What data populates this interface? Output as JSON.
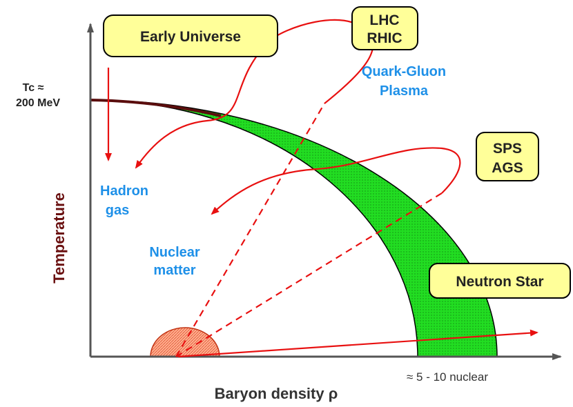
{
  "axes": {
    "y_label": "Temperature",
    "x_label": "Baryon density ρ",
    "tc_label": [
      "Tc ≈",
      "200 MeV"
    ],
    "x_annotation": "≈ 5 - 10 nuclear"
  },
  "boxes": [
    {
      "lines": [
        "Early Universe"
      ]
    },
    {
      "lines": [
        "LHC",
        "RHIC"
      ]
    },
    {
      "lines": [
        "SPS",
        "AGS"
      ]
    },
    {
      "lines": [
        "Neutron Star"
      ]
    }
  ],
  "regions": [
    {
      "lines": [
        "Quark-Gluon",
        "Plasma"
      ]
    },
    {
      "lines": [
        "Hadron",
        "gas"
      ]
    },
    {
      "lines": [
        "Nuclear",
        "matter"
      ]
    }
  ]
}
